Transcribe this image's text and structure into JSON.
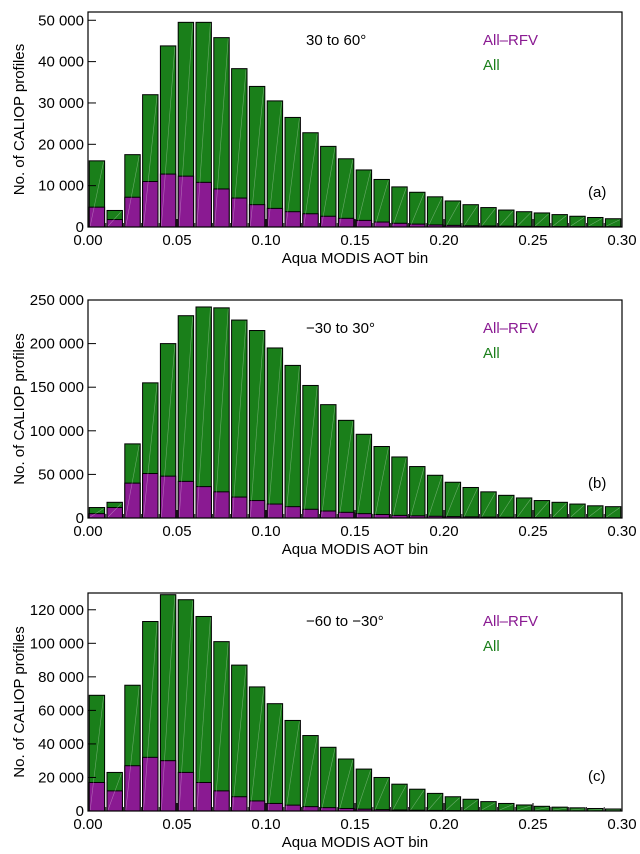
{
  "colors": {
    "all": "#1a7f1a",
    "all_rfv": "#8a1a92",
    "outline": "#000000"
  },
  "chart_data": [
    {
      "type": "bar",
      "xlabel": "Aqua MODIS AOT bin",
      "ylabel": "No. of CALIOP profiles",
      "region_label": "30 to 60°",
      "panel_label": "(a)",
      "ylim": [
        0,
        52000
      ],
      "xlim": [
        0,
        0.3
      ],
      "x_ticks": [
        "0.00",
        "0.05",
        "0.10",
        "0.15",
        "0.20",
        "0.25",
        "0.30"
      ],
      "y_ticks": [
        "0",
        "10 000",
        "20 000",
        "30 000",
        "40 000",
        "50 000"
      ],
      "x": [
        0.005,
        0.015,
        0.025,
        0.035,
        0.045,
        0.055,
        0.065,
        0.075,
        0.085,
        0.095,
        0.105,
        0.115,
        0.125,
        0.135,
        0.145,
        0.155,
        0.165,
        0.175,
        0.185,
        0.195,
        0.205,
        0.215,
        0.225,
        0.235,
        0.245,
        0.255,
        0.265,
        0.275,
        0.285,
        0.295
      ],
      "series": [
        {
          "name": "All",
          "values": [
            16000,
            4000,
            17500,
            32000,
            43800,
            49500,
            49500,
            45800,
            38300,
            34000,
            30500,
            26500,
            22800,
            19500,
            16500,
            13800,
            11500,
            9700,
            8400,
            7300,
            6300,
            5400,
            4700,
            4100,
            3700,
            3400,
            3000,
            2600,
            2300,
            2000
          ]
        },
        {
          "name": "All–RFV",
          "values": [
            4800,
            1800,
            7200,
            11000,
            12800,
            12300,
            10800,
            9200,
            7000,
            5400,
            4500,
            3700,
            3200,
            2600,
            2100,
            1600,
            1200,
            900,
            700,
            500,
            400,
            300,
            250,
            200,
            150,
            120,
            100,
            80,
            60,
            50
          ]
        }
      ]
    },
    {
      "type": "bar",
      "xlabel": "Aqua MODIS AOT bin",
      "ylabel": "No. of CALIOP profiles",
      "region_label": "−30 to 30°",
      "panel_label": "(b)",
      "ylim": [
        0,
        250000
      ],
      "xlim": [
        0,
        0.3
      ],
      "x_ticks": [
        "0.00",
        "0.05",
        "0.10",
        "0.15",
        "0.20",
        "0.25",
        "0.30"
      ],
      "y_ticks": [
        "0",
        "50 000",
        "100 000",
        "150 000",
        "200 000",
        "250 000"
      ],
      "x": [
        0.005,
        0.015,
        0.025,
        0.035,
        0.045,
        0.055,
        0.065,
        0.075,
        0.085,
        0.095,
        0.105,
        0.115,
        0.125,
        0.135,
        0.145,
        0.155,
        0.165,
        0.175,
        0.185,
        0.195,
        0.205,
        0.215,
        0.225,
        0.235,
        0.245,
        0.255,
        0.265,
        0.275,
        0.285,
        0.295
      ],
      "series": [
        {
          "name": "All",
          "values": [
            12000,
            18000,
            85000,
            155000,
            200000,
            232000,
            242000,
            241000,
            227000,
            215000,
            195000,
            175000,
            152000,
            130000,
            112000,
            96000,
            82000,
            70000,
            59000,
            49000,
            41000,
            35000,
            30000,
            26000,
            23000,
            20000,
            18000,
            16000,
            14000,
            13000
          ]
        },
        {
          "name": "All–RFV",
          "values": [
            5000,
            12000,
            40000,
            51000,
            48000,
            42000,
            36000,
            30000,
            24000,
            20000,
            16000,
            13000,
            10000,
            8000,
            6500,
            5000,
            4000,
            3000,
            2500,
            2000,
            1600,
            1300,
            1000,
            800,
            600,
            500,
            400,
            300,
            250,
            200
          ]
        }
      ]
    },
    {
      "type": "bar",
      "xlabel": "Aqua MODIS AOT bin",
      "ylabel": "No. of CALIOP profiles",
      "region_label": "−60 to −30°",
      "panel_label": "(c)",
      "ylim": [
        0,
        130000
      ],
      "xlim": [
        0,
        0.3
      ],
      "x_ticks": [
        "0.00",
        "0.05",
        "0.10",
        "0.15",
        "0.20",
        "0.25",
        "0.30"
      ],
      "y_ticks": [
        "0",
        "20 000",
        "40 000",
        "60 000",
        "80 000",
        "100 000",
        "120 000"
      ],
      "x": [
        0.005,
        0.015,
        0.025,
        0.035,
        0.045,
        0.055,
        0.065,
        0.075,
        0.085,
        0.095,
        0.105,
        0.115,
        0.125,
        0.135,
        0.145,
        0.155,
        0.165,
        0.175,
        0.185,
        0.195,
        0.205,
        0.215,
        0.225,
        0.235,
        0.245,
        0.255,
        0.265,
        0.275,
        0.285,
        0.295
      ],
      "series": [
        {
          "name": "All",
          "values": [
            69000,
            23000,
            75000,
            113000,
            129000,
            126000,
            116000,
            101000,
            87000,
            74000,
            64000,
            54000,
            45000,
            38000,
            31000,
            25000,
            20000,
            16000,
            13000,
            10500,
            8500,
            7000,
            5600,
            4500,
            3600,
            2800,
            2300,
            1900,
            1500,
            1200
          ]
        },
        {
          "name": "All–RFV",
          "values": [
            17000,
            12000,
            27000,
            32000,
            30000,
            23000,
            17000,
            12000,
            8500,
            6000,
            4500,
            3500,
            2600,
            2000,
            1500,
            1100,
            800,
            600,
            450,
            350,
            260,
            200,
            150,
            110,
            80,
            60,
            45,
            35,
            25,
            20
          ]
        }
      ]
    }
  ]
}
